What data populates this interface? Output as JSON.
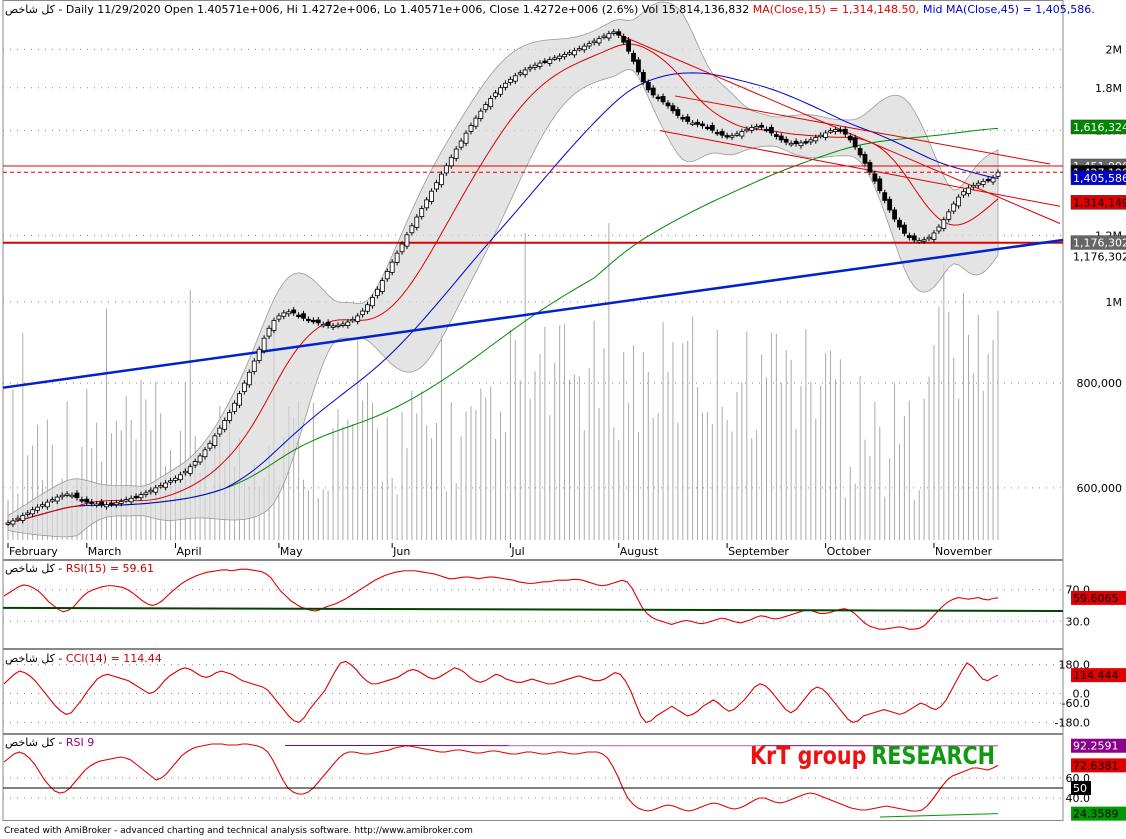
{
  "header": {
    "symbol": "کل شاخص",
    "info_text": " - Daily 11/29/2020 Open 1.40571e+006, Hi 1.4272e+006, Lo 1.40571e+006, Close 1.4272e+006 (2.6%) Vol 15,814,136,832 ",
    "ma15_text": "MA(Close,15) = 1,314,148.50,",
    "ma45_text": "Mid MA(Close,45) = 1,405,586."
  },
  "colors": {
    "up": "#ffffff",
    "down": "#000000",
    "ma15": "#e00000",
    "ma45": "#0000cc",
    "long_ma": "#008800",
    "bollinger": "#d9d9d9",
    "trend_blue": "#0022cc",
    "trend_red": "#dd0000",
    "rsi9": "#e00000",
    "cci": "#dd0000",
    "brand_red": "#ee1111",
    "brand_green": "#119911"
  },
  "chart_data": [
    {
      "type": "candlestick",
      "title": "کل شاخص - Daily 11/29/2020",
      "y_scale": "log",
      "ylim": [
        520000,
        2180000
      ],
      "y_ticks": [
        {
          "value": 600000,
          "label": "600,000"
        },
        {
          "value": 800000,
          "label": "800,000"
        },
        {
          "value": 1000000,
          "label": "1M"
        },
        {
          "value": 1200000,
          "label": "1.2M"
        },
        {
          "value": 1600000,
          "label": "1.6M"
        },
        {
          "value": 1800000,
          "label": "1.8M"
        },
        {
          "value": 2000000,
          "label": "2M"
        }
      ],
      "x_month_labels": [
        "February",
        "March",
        "April",
        "May",
        "Jun",
        "Jul",
        "August",
        "September",
        "October",
        "November"
      ],
      "month_start_index": [
        0,
        16,
        34,
        55,
        78,
        102,
        124,
        146,
        166,
        188
      ],
      "closes": [
        545000,
        548000,
        552000,
        556000,
        560000,
        565000,
        569000,
        573000,
        577000,
        581000,
        585000,
        588000,
        590000,
        588000,
        584000,
        580000,
        577000,
        575000,
        574000,
        573000,
        573000,
        574000,
        576000,
        578000,
        581000,
        583000,
        586000,
        589000,
        592000,
        596000,
        600000,
        604000,
        608000,
        612000,
        616000,
        622000,
        628000,
        636000,
        645000,
        655000,
        666000,
        678000,
        692000,
        707000,
        722000,
        738000,
        757000,
        777000,
        800000,
        824000,
        850000,
        878000,
        905000,
        930000,
        950000,
        962000,
        970000,
        973000,
        970000,
        963000,
        956000,
        951000,
        948000,
        944000,
        940000,
        937000,
        936000,
        938000,
        941000,
        946000,
        953000,
        962000,
        975000,
        992000,
        1012000,
        1035000,
        1060000,
        1087000,
        1115000,
        1143000,
        1172000,
        1202000,
        1232000,
        1262000,
        1292000,
        1323000,
        1355000,
        1387000,
        1420000,
        1453000,
        1487000,
        1521000,
        1555000,
        1589000,
        1623000,
        1656000,
        1688000,
        1719000,
        1748000,
        1775000,
        1800000,
        1822000,
        1842000,
        1860000,
        1876000,
        1890000,
        1903000,
        1915000,
        1926000,
        1936000,
        1945000,
        1954000,
        1963000,
        1972000,
        1982000,
        1993000,
        2005000,
        2018000,
        2032000,
        2046000,
        2060000,
        2074000,
        2088000,
        2098000,
        2080000,
        2040000,
        1990000,
        1935000,
        1880000,
        1830000,
        1790000,
        1765000,
        1748000,
        1732000,
        1713000,
        1690000,
        1668000,
        1652000,
        1641000,
        1634000,
        1628000,
        1622000,
        1614000,
        1602000,
        1590000,
        1580000,
        1575000,
        1578000,
        1586000,
        1596000,
        1606000,
        1614000,
        1618000,
        1615000,
        1605000,
        1590000,
        1574000,
        1560000,
        1550000,
        1545000,
        1544000,
        1547000,
        1552000,
        1560000,
        1570000,
        1580000,
        1590000,
        1600000,
        1605000,
        1600000,
        1585000,
        1560000,
        1530000,
        1497000,
        1463000,
        1428000,
        1393000,
        1357000,
        1321000,
        1287000,
        1255000,
        1228000,
        1207000,
        1193000,
        1185000,
        1183000,
        1186000,
        1194000,
        1208000,
        1228000,
        1253000,
        1280000,
        1308000,
        1333000,
        1353000,
        1367000,
        1377000,
        1385000,
        1392000,
        1398000,
        1405000,
        1427200
      ],
      "last_bar": {
        "date": "11/29/2020",
        "open": 1405710,
        "high": 1427200,
        "low": 1405710,
        "close": 1427200,
        "change_pct": 2.6,
        "volume": 15814136832
      },
      "ma15_last": 1314148.5,
      "ma45_last": 1405586,
      "axis_badges": [
        {
          "value": 1616324,
          "label": "1,616,324",
          "bg": "#008800",
          "fg": "#ffffff"
        },
        {
          "value": 1451996,
          "label": "1,451,996",
          "bg": "#666666",
          "fg": "#ffffff"
        },
        {
          "value": 1427199,
          "label": "1,427,199",
          "bg": "#000000",
          "fg": "#ffffff"
        },
        {
          "value": 1405586,
          "label": "1,405,586",
          "bg": "#0000cc",
          "fg": "#ffffff"
        },
        {
          "value": 1314149,
          "label": "1,314,149",
          "bg": "#e00000",
          "fg": "#000000"
        },
        {
          "value": 1176302,
          "label": "1,176,302",
          "bg": "#666666",
          "fg": "#ffffff"
        },
        {
          "value": 1176302,
          "label": "1,176,302",
          "bg": "#ffffff",
          "fg": "#000000"
        }
      ],
      "horizontal_levels": [
        1451996,
        1427199,
        1176302
      ]
    },
    {
      "type": "line",
      "title": "RSI(15) = 59.61",
      "ylim": [
        0,
        100
      ],
      "y_ticks": [
        {
          "value": 70,
          "label": "70.0"
        },
        {
          "value": 30,
          "label": "30.0"
        }
      ],
      "last_value_label": "59.6065",
      "values": [
        62,
        66,
        70,
        74,
        76,
        75,
        72,
        68,
        62,
        55,
        50,
        45,
        42,
        44,
        48,
        55,
        62,
        67,
        70,
        72,
        74,
        75,
        75,
        74,
        73,
        70,
        66,
        61,
        56,
        52,
        50,
        52,
        56,
        62,
        68,
        73,
        78,
        82,
        85,
        88,
        90,
        92,
        93,
        94,
        95,
        95,
        94,
        95,
        96,
        96,
        95,
        94,
        93,
        90,
        85,
        76,
        68,
        62,
        56,
        52,
        48,
        46,
        44,
        43,
        45,
        48,
        50,
        52,
        55,
        58,
        62,
        66,
        70,
        74,
        78,
        82,
        85,
        88,
        90,
        92,
        93,
        94,
        94,
        94,
        93,
        92,
        91,
        90,
        88,
        86,
        84,
        84,
        85,
        86,
        86,
        85,
        84,
        85,
        86,
        86,
        85,
        84,
        83,
        82,
        80,
        79,
        78,
        78,
        79,
        80,
        80,
        81,
        82,
        82,
        82,
        83,
        83,
        82,
        80,
        78,
        76,
        75,
        76,
        78,
        80,
        82,
        80,
        72,
        60,
        48,
        40,
        35,
        32,
        30,
        28,
        26,
        28,
        30,
        31,
        30,
        28,
        27,
        28,
        30,
        32,
        34,
        33,
        31,
        29,
        28,
        30,
        32,
        35,
        37,
        36,
        34,
        33,
        34,
        36,
        38,
        40,
        42,
        44,
        44,
        42,
        40,
        40,
        41,
        43,
        45,
        46,
        44,
        40,
        34,
        28,
        24,
        22,
        20,
        20,
        21,
        22,
        23,
        22,
        20,
        20,
        21,
        24,
        30,
        37,
        44,
        50,
        55,
        58,
        60,
        59,
        58,
        59,
        60,
        58,
        57,
        59,
        59.61
      ]
    },
    {
      "type": "line",
      "title": "CCI(14) = 114.44",
      "ylim": [
        -240,
        240
      ],
      "y_ticks": [
        {
          "value": 180,
          "label": "180.0"
        },
        {
          "value": 0,
          "label": "0.0"
        },
        {
          "value": -60,
          "label": "-60.0"
        },
        {
          "value": -180,
          "label": "-180.0"
        }
      ],
      "last_value_label": "114.444",
      "values": [
        60,
        90,
        120,
        140,
        130,
        110,
        80,
        40,
        0,
        -40,
        -80,
        -110,
        -130,
        -120,
        -80,
        -40,
        10,
        50,
        90,
        110,
        120,
        110,
        100,
        90,
        80,
        60,
        40,
        20,
        0,
        10,
        40,
        80,
        110,
        130,
        150,
        160,
        150,
        130,
        110,
        100,
        110,
        130,
        140,
        130,
        120,
        100,
        80,
        70,
        60,
        50,
        40,
        20,
        -20,
        -60,
        -100,
        -140,
        -170,
        -180,
        -150,
        -100,
        -60,
        -20,
        20,
        80,
        140,
        190,
        200,
        180,
        150,
        110,
        80,
        60,
        60,
        70,
        80,
        90,
        100,
        120,
        140,
        150,
        140,
        120,
        100,
        90,
        100,
        120,
        140,
        160,
        150,
        130,
        100,
        80,
        70,
        80,
        100,
        120,
        110,
        90,
        80,
        70,
        70,
        80,
        90,
        80,
        70,
        60,
        60,
        70,
        80,
        90,
        100,
        110,
        100,
        90,
        80,
        80,
        90,
        110,
        130,
        120,
        80,
        20,
        -60,
        -140,
        -180,
        -170,
        -140,
        -120,
        -100,
        -80,
        -100,
        -120,
        -140,
        -130,
        -110,
        -80,
        -60,
        -40,
        -60,
        -90,
        -110,
        -100,
        -70,
        -40,
        0,
        40,
        60,
        50,
        20,
        -20,
        -60,
        -100,
        -120,
        -100,
        -60,
        -20,
        20,
        40,
        30,
        0,
        -40,
        -80,
        -120,
        -160,
        -180,
        -170,
        -140,
        -130,
        -120,
        -110,
        -100,
        -110,
        -120,
        -130,
        -120,
        -100,
        -80,
        -60,
        -70,
        -90,
        -100,
        -80,
        -40,
        20,
        80,
        140,
        190,
        170,
        130,
        90,
        80,
        100,
        114.44
      ]
    },
    {
      "type": "line",
      "title": "RSI 9",
      "ylim": [
        20,
        100
      ],
      "y_ticks": [
        {
          "value": 60,
          "label": "60.0"
        },
        {
          "value": 40,
          "label": "40.0"
        }
      ],
      "level_badges": [
        {
          "value": 92.2591,
          "label": "92.2591",
          "bg": "#8b008b",
          "fg": "#ffffff"
        },
        {
          "value": 72.6381,
          "label": "72.6381",
          "bg": "#e00000",
          "fg": "#000000"
        },
        {
          "value": 50,
          "label": "50",
          "bg": "#000000",
          "fg": "#ffffff"
        },
        {
          "value": 24.3589,
          "label": "24.3589",
          "bg": "#009900",
          "fg": "#000000"
        }
      ],
      "values": [
        76,
        80,
        84,
        86,
        84,
        80,
        74,
        66,
        58,
        52,
        47,
        45,
        46,
        50,
        56,
        62,
        68,
        72,
        75,
        77,
        78,
        79,
        80,
        81,
        80,
        78,
        74,
        70,
        66,
        62,
        58,
        60,
        64,
        70,
        76,
        82,
        86,
        89,
        91,
        92,
        93,
        94,
        94,
        94,
        93,
        93,
        93,
        94,
        94,
        93,
        92,
        90,
        86,
        78,
        68,
        58,
        50,
        46,
        44,
        44,
        46,
        50,
        56,
        62,
        68,
        74,
        80,
        84,
        86,
        86,
        85,
        84,
        84,
        85,
        86,
        87,
        88,
        90,
        91,
        92,
        92,
        91,
        90,
        89,
        88,
        87,
        86,
        86,
        87,
        88,
        88,
        87,
        86,
        85,
        85,
        86,
        87,
        87,
        86,
        85,
        84,
        84,
        85,
        86,
        86,
        85,
        84,
        84,
        85,
        86,
        86,
        85,
        84,
        84,
        85,
        86,
        86,
        86,
        84,
        80,
        72,
        62,
        50,
        40,
        34,
        30,
        28,
        27,
        28,
        30,
        32,
        33,
        32,
        30,
        28,
        27,
        28,
        30,
        32,
        34,
        35,
        34,
        32,
        30,
        29,
        30,
        32,
        35,
        38,
        40,
        40,
        38,
        36,
        35,
        36,
        38,
        40,
        42,
        44,
        45,
        44,
        42,
        40,
        38,
        36,
        34,
        32,
        30,
        29,
        28,
        28,
        29,
        30,
        31,
        32,
        31,
        30,
        29,
        28,
        27,
        27,
        28,
        32,
        38,
        45,
        52,
        58,
        62,
        64,
        66,
        68,
        70,
        70,
        69,
        68,
        70,
        72.64
      ],
      "line2_values": [
        92.26,
        92.2591
      ],
      "line3_values": [
        24.36,
        24.3589
      ]
    }
  ],
  "brand": {
    "part1": "KrT group",
    "part2": "RESEARCH"
  },
  "footer": "Created with AmiBroker - advanced charting and technical analysis software. http://www.amibroker.com"
}
